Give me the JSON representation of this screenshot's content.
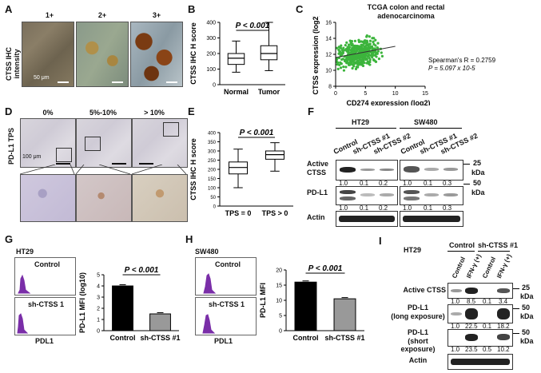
{
  "panelA": {
    "label": "A",
    "ylabel": "CTSS IHC intensity",
    "titles": [
      "1+",
      "2+",
      "3+"
    ],
    "scalebar": "50 μm"
  },
  "panelB": {
    "label": "B",
    "pvalue": "P < 0.001",
    "chart_data": {
      "type": "box",
      "ylabel": "CTSS IHC H score",
      "categories": [
        "Normal",
        "Tumor"
      ],
      "yticks": [
        0,
        100,
        200,
        300,
        400
      ],
      "ylim": [
        0,
        400
      ],
      "boxes": [
        {
          "min": 80,
          "q1": 130,
          "median": 170,
          "q3": 200,
          "max": 280
        },
        {
          "min": 90,
          "q1": 160,
          "median": 200,
          "q3": 250,
          "max": 400
        }
      ]
    }
  },
  "panelC": {
    "label": "C",
    "title_line1": "TCGA colon and rectal",
    "title_line2": "adenocarcinoma",
    "ylabel": "CTSS expression (log2)",
    "xlabel": "CD274 expression (log2)",
    "stat1": "Spearman's R = 0.2759",
    "stat2": "P = 5.097 x 10-5",
    "chart_data": {
      "type": "scatter",
      "xticks": [
        0,
        5,
        10,
        15
      ],
      "yticks": [
        8,
        10,
        12,
        14,
        16
      ],
      "xlim": [
        0,
        15
      ],
      "ylim": [
        8,
        16
      ],
      "trend": {
        "x": [
          0,
          10
        ],
        "y": [
          11.6,
          13.0
        ]
      },
      "point_color": "#3cb43c"
    }
  },
  "panelD": {
    "label": "D",
    "ylabel": "PD-L1 TPS",
    "titles": [
      "0%",
      "5%-10%",
      "> 10%"
    ],
    "scalebar": "100 μm"
  },
  "panelE": {
    "label": "E",
    "pvalue": "P < 0.001",
    "chart_data": {
      "type": "box",
      "ylabel": "CTSS IHC H score",
      "categories": [
        "TPS = 0",
        "TPS > 0"
      ],
      "yticks": [
        0,
        50,
        100,
        150,
        200,
        250,
        300,
        350,
        400
      ],
      "ylim": [
        0,
        400
      ],
      "boxes": [
        {
          "min": 100,
          "q1": 175,
          "median": 210,
          "q3": 240,
          "max": 310
        },
        {
          "min": 190,
          "q1": 255,
          "median": 280,
          "q3": 300,
          "max": 345
        }
      ]
    }
  },
  "panelF": {
    "label": "F",
    "cell1": "HT29",
    "cell2": "SW480",
    "lanes": [
      "Control",
      "sh-CTSS #1",
      "sh-CTSS #2"
    ],
    "rows": [
      "Active CTSS",
      "PD-L1",
      "Actin"
    ],
    "row_label_active_1": "Active",
    "row_label_active_2": "CTSS",
    "quant_ctss_ht29": [
      "1.0",
      "0.1",
      "0.2"
    ],
    "quant_ctss_sw480": [
      "1.0",
      "0.1",
      "0.3"
    ],
    "quant_pdl1_ht29": [
      "1.0",
      "0.1",
      "0.2"
    ],
    "quant_pdl1_sw480": [
      "1.0",
      "0.1",
      "0.3"
    ],
    "mw1": "25",
    "mw2": "50",
    "kda": "kDa"
  },
  "panelG": {
    "label": "G",
    "cell": "HT29",
    "flow1": "Control",
    "flow2": "sh-CTSS 1",
    "xlabel": "PDL1",
    "pvalue": "P < 0.001",
    "chart_data": {
      "type": "bar",
      "ylabel": "PD-L1 MFI (log10)",
      "categories": [
        "Control",
        "sh-CTSS #1"
      ],
      "values": [
        4.0,
        1.5
      ],
      "yticks": [
        0,
        1,
        2,
        3,
        4,
        5
      ],
      "ylim": [
        0,
        5
      ],
      "colors": [
        "#000000",
        "#999999"
      ]
    }
  },
  "panelH": {
    "label": "H",
    "cell": "SW480",
    "flow1": "Control",
    "flow2": "sh-CTSS 1",
    "xlabel": "PDL1",
    "pvalue": "P < 0.001",
    "chart_data": {
      "type": "bar",
      "ylabel": "PD-L1 MFI",
      "categories": [
        "Control",
        "sh-CTSS #1"
      ],
      "values": [
        16.0,
        10.5
      ],
      "yticks": [
        0,
        5,
        10,
        15,
        20
      ],
      "ylim": [
        0,
        20
      ],
      "colors": [
        "#000000",
        "#999999"
      ]
    }
  },
  "panelI": {
    "label": "I",
    "cell": "HT29",
    "group1": "Control",
    "group2": "sh-CTSS #1",
    "lanes": [
      "Control",
      "IFN-γ (+)",
      "Control",
      "IFN-γ (+)"
    ],
    "row1": "Active CTSS",
    "row2a": "PD-L1",
    "row2b": "(long exposure)",
    "row3a": "PD-L1",
    "row3b": "(short exposure)",
    "row4": "Actin",
    "quant_ctss": [
      "1.0",
      "8.5",
      "0.1",
      "3.4"
    ],
    "quant_long": [
      "1.0",
      "22.5",
      "0.1",
      "18.2"
    ],
    "quant_short": [
      "1.0",
      "23.5",
      "0.5",
      "10.2"
    ],
    "mw1": "25",
    "mw2": "50",
    "mw3": "50",
    "kda": "kDa"
  }
}
